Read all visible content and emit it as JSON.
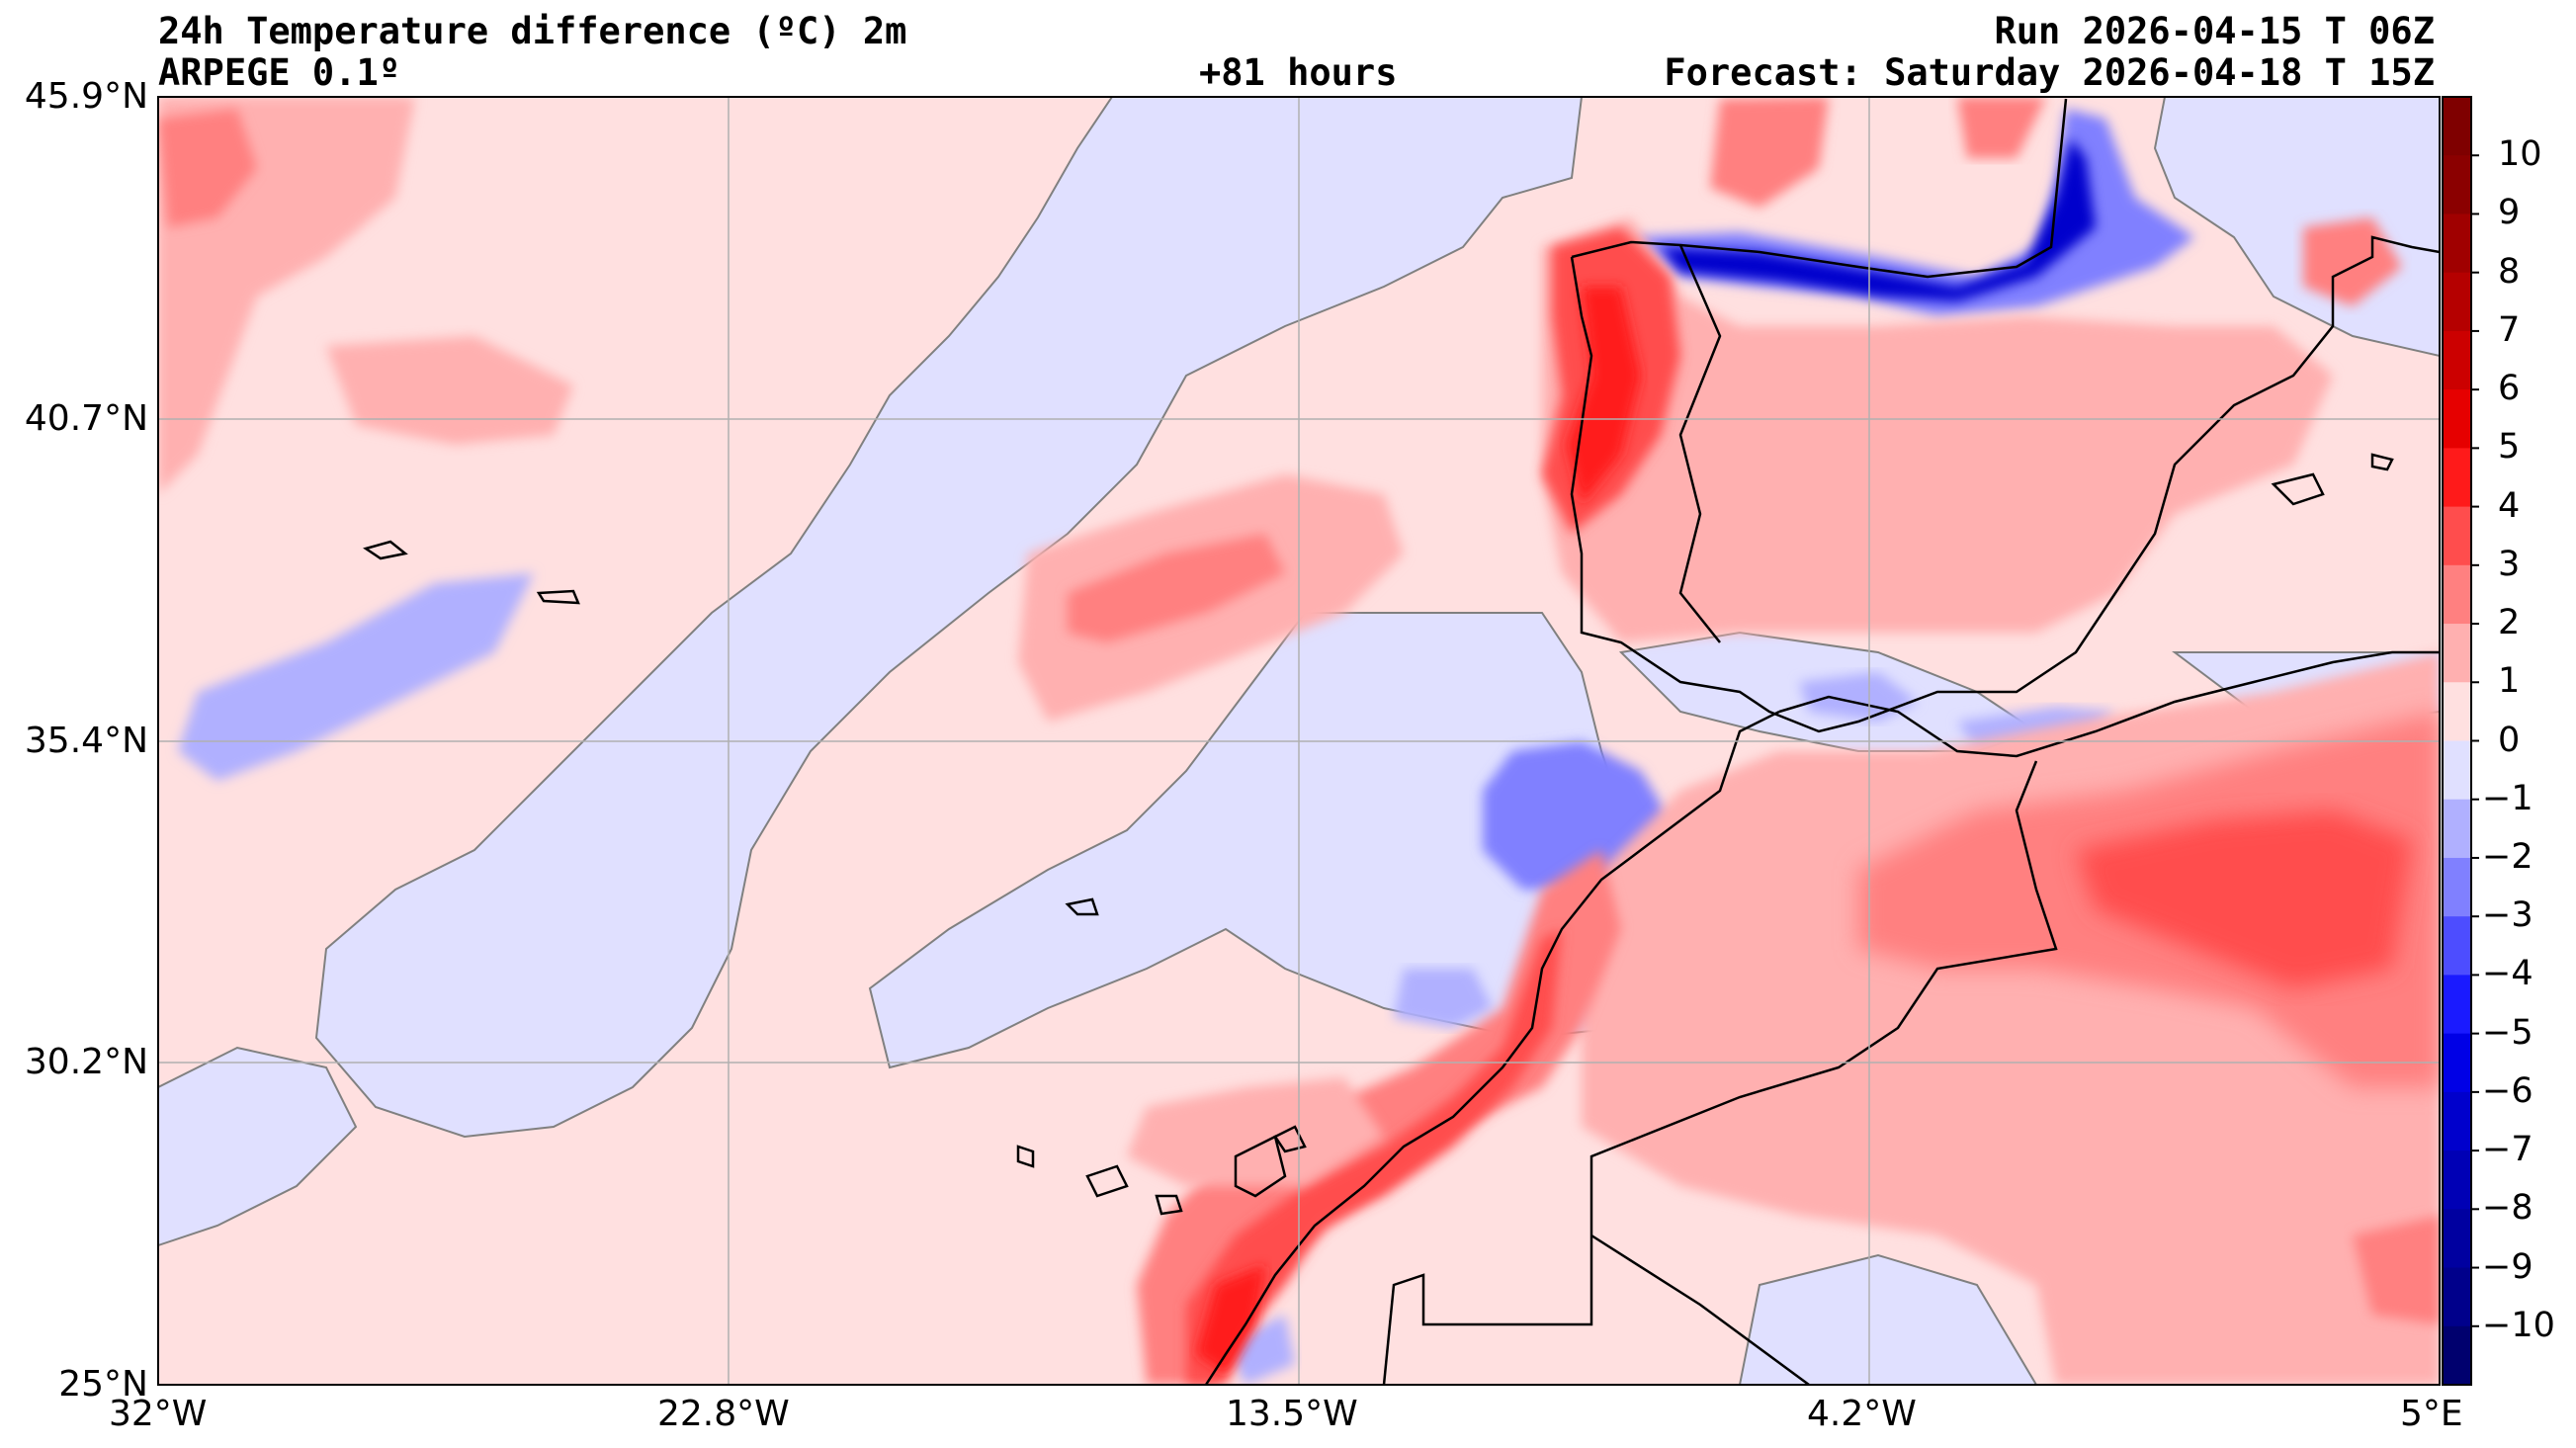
{
  "header": {
    "title": "24h Temperature difference (ºC) 2m",
    "model": "ARPEGE 0.1º",
    "lead": "+81 hours",
    "run": "Run 2026-04-15 T 06Z",
    "forecast": "Forecast: Saturday 2026-04-18 T 15Z"
  },
  "axes": {
    "lat_labels": [
      "45.9°N",
      "40.7°N",
      "35.4°N",
      "30.2°N",
      "25°N"
    ],
    "lon_labels": [
      "32°W",
      "22.8°W",
      "13.5°W",
      "4.2°W",
      "5°E"
    ]
  },
  "colorbar": {
    "labels": [
      "10",
      "9",
      "8",
      "7",
      "6",
      "5",
      "4",
      "3",
      "2",
      "1",
      "0",
      "−1",
      "−2",
      "−3",
      "−4",
      "−5",
      "−6",
      "−7",
      "−8",
      "−9",
      "−10"
    ],
    "colors": [
      "#7f0000",
      "#8b0000",
      "#a00000",
      "#b50000",
      "#cc0000",
      "#e60000",
      "#ff1a1a",
      "#ff4d4d",
      "#ff8080",
      "#ffb0b0",
      "#ffe0e0",
      "#e0e0ff",
      "#b0b0ff",
      "#8080ff",
      "#4d4dff",
      "#1a1aff",
      "#0000e6",
      "#0000cc",
      "#0000b5",
      "#0000a0",
      "#00008b",
      "#00006e"
    ]
  },
  "chart_data": {
    "type": "heatmap",
    "title": "24h Temperature difference (ºC) 2m",
    "variable": "2m temperature difference over 24h",
    "units": "ºC",
    "lat_range": [
      25.0,
      45.9
    ],
    "lon_range": [
      -32.0,
      5.0
    ],
    "color_range": [
      -10,
      10
    ],
    "contour_levels": [
      -10,
      -9,
      -8,
      -7,
      -6,
      -5,
      -4,
      -3,
      -2,
      -1,
      0,
      1,
      2,
      3,
      4,
      5,
      6,
      7,
      8,
      9,
      10
    ]
  }
}
